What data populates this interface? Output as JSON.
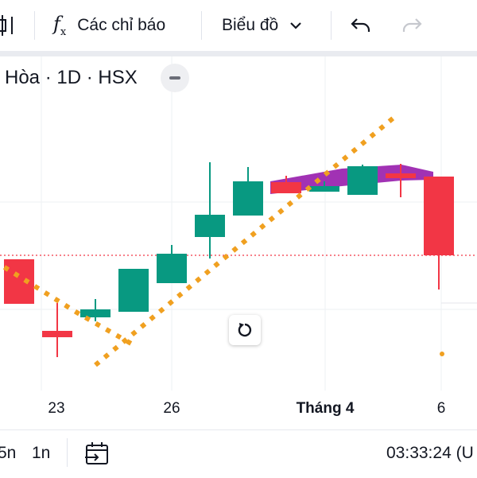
{
  "toolbar": {
    "indicators_label": "Các chỉ báo",
    "chart_type_label": "Biểu đồ",
    "icons": [
      "candlestick-icon",
      "function-icon",
      "chevron-down-icon",
      "undo-icon",
      "redo-icon"
    ]
  },
  "legend": {
    "text": "Hòa · 1D · HSX"
  },
  "x_axis": {
    "labels": [
      "23",
      "26",
      "Tháng 4",
      "6"
    ]
  },
  "bottom_bar": {
    "range_5d": "5n",
    "range_1m": "1n",
    "clock": "03:33:24 (U"
  },
  "colors": {
    "up": "#089981",
    "down": "#f23645",
    "dotted_line": "#f0a020",
    "band": "#9c27b0",
    "price_line": "#f23645"
  },
  "chart_data": {
    "type": "candlestick",
    "candles": [
      {
        "open": 88,
        "close": 32,
        "high": 88,
        "low": 32,
        "dir": "down"
      },
      {
        "open": -2,
        "close": -10,
        "high": 33,
        "low": -35,
        "dir": "down"
      },
      {
        "open": 15,
        "close": 25,
        "high": 38,
        "low": 10,
        "dir": "up"
      },
      {
        "open": 22,
        "close": 76,
        "high": 76,
        "low": 22,
        "dir": "up"
      },
      {
        "open": 58,
        "close": 95,
        "high": 106,
        "low": 58,
        "dir": "up"
      },
      {
        "open": 116,
        "close": 144,
        "high": 210,
        "low": 89,
        "dir": "up"
      },
      {
        "open": 143,
        "close": 186,
        "high": 204,
        "low": 143,
        "dir": "up"
      },
      {
        "open": 185,
        "close": 171,
        "high": 193,
        "low": 171,
        "dir": "down"
      },
      {
        "open": 173,
        "close": 180,
        "high": 186,
        "low": 173,
        "dir": "up"
      },
      {
        "open": 169,
        "close": 205,
        "high": 207,
        "low": 169,
        "dir": "up"
      },
      {
        "open": 196,
        "close": 191,
        "high": 208,
        "low": 166,
        "dir": "down"
      },
      {
        "open": 192,
        "close": 93,
        "high": 192,
        "low": 50,
        "dir": "down"
      }
    ],
    "price_line": 93,
    "dotted_line_a": [
      [
        -20,
        94
      ],
      [
        100,
        19
      ],
      [
        165,
        -18
      ]
    ],
    "dotted_line_b": [
      [
        120,
        -45
      ],
      [
        500,
        270
      ]
    ],
    "band_top": [
      [
        340,
        186
      ],
      [
        430,
        202
      ],
      [
        505,
        207
      ],
      [
        545,
        198
      ]
    ],
    "band_bottom": [
      [
        340,
        170
      ],
      [
        430,
        180
      ],
      [
        505,
        187
      ],
      [
        545,
        188
      ]
    ],
    "gridlines": [
      25,
      160
    ]
  }
}
